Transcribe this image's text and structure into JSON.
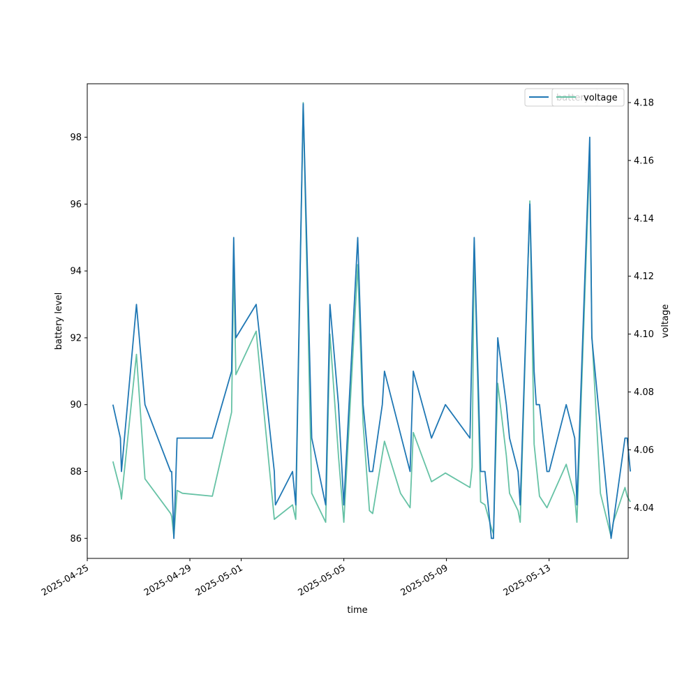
{
  "chart_data": {
    "type": "line",
    "xlabel": "time",
    "ylabel_left": "battery level",
    "ylabel_right": "voltage",
    "x_ticks": [
      "2025-04-25",
      "2025-04-29",
      "2025-05-01",
      "2025-05-05",
      "2025-05-09",
      "2025-05-13"
    ],
    "x_range": [
      "2025-04-25 00:00",
      "2025-05-16 02:00"
    ],
    "y_left_range": [
      85.4,
      99.6
    ],
    "y_left_ticks": [
      86,
      88,
      90,
      92,
      94,
      96,
      98
    ],
    "y_right_range": [
      4.0225,
      4.1865
    ],
    "y_right_ticks": [
      "4.04",
      "4.06",
      "4.08",
      "4.10",
      "4.12",
      "4.14",
      "4.16",
      "4.18"
    ],
    "legend": {
      "placement": "top-right",
      "entries": [
        "battery",
        "voltage"
      ]
    },
    "colors": {
      "battery": "#1f77b4",
      "voltage": "#66c2a5"
    },
    "series": [
      {
        "name": "battery",
        "axis": "left",
        "points": [
          [
            "2025-04-26 00:00",
            90
          ],
          [
            "2025-04-26 07:00",
            89
          ],
          [
            "2025-04-26 08:00",
            88
          ],
          [
            "2025-04-26 22:00",
            93
          ],
          [
            "2025-04-27 06:00",
            90
          ],
          [
            "2025-04-28 06:00",
            88
          ],
          [
            "2025-04-28 07:00",
            88
          ],
          [
            "2025-04-28 09:00",
            86
          ],
          [
            "2025-04-28 12:00",
            89
          ],
          [
            "2025-04-28 17:00",
            89
          ],
          [
            "2025-04-29 21:00",
            89
          ],
          [
            "2025-04-30 15:00",
            91
          ],
          [
            "2025-04-30 17:00",
            95
          ],
          [
            "2025-04-30 19:00",
            92
          ],
          [
            "2025-05-01 14:00",
            93
          ],
          [
            "2025-05-02 07:00",
            88
          ],
          [
            "2025-05-02 08:00",
            87
          ],
          [
            "2025-05-03 00:00",
            88
          ],
          [
            "2025-05-03 03:00",
            87
          ],
          [
            "2025-05-03 10:00",
            99
          ],
          [
            "2025-05-03 18:00",
            89
          ],
          [
            "2025-05-04 07:00",
            87
          ],
          [
            "2025-05-04 11:00",
            93
          ],
          [
            "2025-05-04 19:00",
            90
          ],
          [
            "2025-05-05 00:00",
            87
          ],
          [
            "2025-05-05 13:00",
            95
          ],
          [
            "2025-05-05 18:00",
            90
          ],
          [
            "2025-05-06 00:00",
            88
          ],
          [
            "2025-05-06 03:00",
            88
          ],
          [
            "2025-05-06 12:00",
            90
          ],
          [
            "2025-05-06 14:00",
            91
          ],
          [
            "2025-05-07 14:00",
            88
          ],
          [
            "2025-05-07 17:00",
            91
          ],
          [
            "2025-05-08 10:00",
            89
          ],
          [
            "2025-05-08 23:00",
            90
          ],
          [
            "2025-05-09 22:00",
            89
          ],
          [
            "2025-05-10 02:00",
            95
          ],
          [
            "2025-05-10 08:00",
            88
          ],
          [
            "2025-05-10 12:00",
            88
          ],
          [
            "2025-05-10 18:00",
            86
          ],
          [
            "2025-05-10 20:00",
            86
          ],
          [
            "2025-05-11 00:00",
            92
          ],
          [
            "2025-05-11 08:00",
            90
          ],
          [
            "2025-05-11 11:00",
            89
          ],
          [
            "2025-05-11 19:00",
            88
          ],
          [
            "2025-05-11 21:00",
            87
          ],
          [
            "2025-05-12 06:00",
            96
          ],
          [
            "2025-05-12 10:00",
            91
          ],
          [
            "2025-05-12 12:00",
            90
          ],
          [
            "2025-05-12 15:00",
            90
          ],
          [
            "2025-05-12 22:00",
            88
          ],
          [
            "2025-05-13 00:00",
            88
          ],
          [
            "2025-05-13 16:00",
            90
          ],
          [
            "2025-05-14 00:00",
            89
          ],
          [
            "2025-05-14 02:00",
            87
          ],
          [
            "2025-05-14 14:00",
            98
          ],
          [
            "2025-05-14 16:00",
            92
          ],
          [
            "2025-05-15 10:00",
            86
          ],
          [
            "2025-05-15 23:00",
            89
          ],
          [
            "2025-05-16 01:00",
            89
          ],
          [
            "2025-05-16 04:00",
            88
          ]
        ]
      },
      {
        "name": "voltage",
        "axis": "right",
        "points": [
          [
            "2025-04-26 00:00",
            4.056
          ],
          [
            "2025-04-26 07:00",
            4.046
          ],
          [
            "2025-04-26 08:00",
            4.043
          ],
          [
            "2025-04-26 22:00",
            4.093
          ],
          [
            "2025-04-27 06:00",
            4.05
          ],
          [
            "2025-04-28 06:00",
            4.038
          ],
          [
            "2025-04-28 07:00",
            4.037
          ],
          [
            "2025-04-28 09:00",
            4.03
          ],
          [
            "2025-04-28 12:00",
            4.046
          ],
          [
            "2025-04-28 17:00",
            4.045
          ],
          [
            "2025-04-29 21:00",
            4.044
          ],
          [
            "2025-04-30 15:00",
            4.073
          ],
          [
            "2025-04-30 17:00",
            4.125
          ],
          [
            "2025-04-30 19:00",
            4.086
          ],
          [
            "2025-05-01 14:00",
            4.101
          ],
          [
            "2025-05-02 07:00",
            4.036
          ],
          [
            "2025-05-03 00:00",
            4.041
          ],
          [
            "2025-05-03 03:00",
            4.036
          ],
          [
            "2025-05-03 10:00",
            4.18
          ],
          [
            "2025-05-03 18:00",
            4.045
          ],
          [
            "2025-05-04 07:00",
            4.035
          ],
          [
            "2025-05-04 11:00",
            4.1
          ],
          [
            "2025-05-04 19:00",
            4.058
          ],
          [
            "2025-05-05 00:00",
            4.035
          ],
          [
            "2025-05-05 13:00",
            4.124
          ],
          [
            "2025-05-05 18:00",
            4.069
          ],
          [
            "2025-05-06 00:00",
            4.039
          ],
          [
            "2025-05-06 03:00",
            4.038
          ],
          [
            "2025-05-06 14:00",
            4.063
          ],
          [
            "2025-05-07 05:00",
            4.045
          ],
          [
            "2025-05-07 14:00",
            4.04
          ],
          [
            "2025-05-07 17:00",
            4.066
          ],
          [
            "2025-05-08 10:00",
            4.049
          ],
          [
            "2025-05-08 23:00",
            4.052
          ],
          [
            "2025-05-09 22:00",
            4.047
          ],
          [
            "2025-05-10 00:00",
            4.054
          ],
          [
            "2025-05-10 02:00",
            4.132
          ],
          [
            "2025-05-10 08:00",
            4.042
          ],
          [
            "2025-05-10 12:00",
            4.041
          ],
          [
            "2025-05-10 18:00",
            4.033
          ],
          [
            "2025-05-10 20:00",
            4.031
          ],
          [
            "2025-05-11 00:00",
            4.083
          ],
          [
            "2025-05-11 08:00",
            4.058
          ],
          [
            "2025-05-11 11:00",
            4.045
          ],
          [
            "2025-05-11 19:00",
            4.039
          ],
          [
            "2025-05-11 21:00",
            4.035
          ],
          [
            "2025-05-12 06:00",
            4.146
          ],
          [
            "2025-05-12 10:00",
            4.062
          ],
          [
            "2025-05-12 15:00",
            4.044
          ],
          [
            "2025-05-12 22:00",
            4.04
          ],
          [
            "2025-05-13 16:00",
            4.055
          ],
          [
            "2025-05-14 00:00",
            4.044
          ],
          [
            "2025-05-14 02:00",
            4.035
          ],
          [
            "2025-05-14 14:00",
            4.162
          ],
          [
            "2025-05-14 16:00",
            4.1
          ],
          [
            "2025-05-15 00:00",
            4.045
          ],
          [
            "2025-05-15 10:00",
            4.03
          ],
          [
            "2025-05-15 12:00",
            4.035
          ],
          [
            "2025-05-15 23:00",
            4.047
          ],
          [
            "2025-05-16 01:00",
            4.044
          ],
          [
            "2025-05-16 04:00",
            4.042
          ]
        ]
      }
    ]
  }
}
